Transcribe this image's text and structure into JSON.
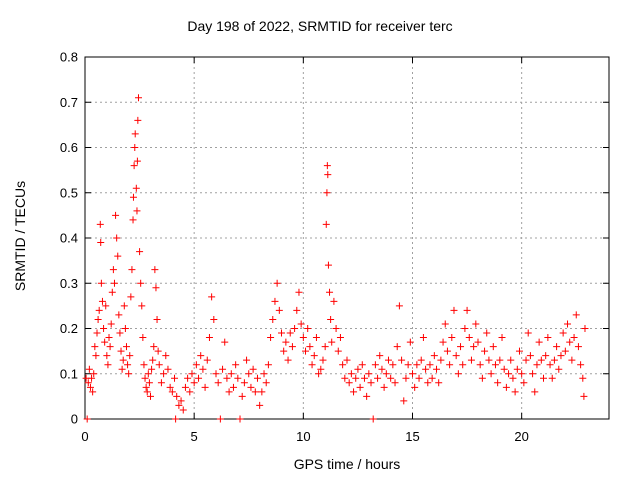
{
  "chart_data": {
    "type": "scatter",
    "title": "Day 198 of 2022, SRMTID for receiver terc",
    "xlabel": "GPS time / hours",
    "ylabel": "SRMTID / TECUs",
    "xlim": [
      0,
      24
    ],
    "ylim": [
      0,
      0.8
    ],
    "xticks": [
      0,
      5,
      10,
      15,
      20
    ],
    "xtick_labels": [
      "0",
      "5",
      "10",
      "15",
      "20"
    ],
    "yticks": [
      0,
      0.1,
      0.2,
      0.3,
      0.4,
      0.5,
      0.6,
      0.7,
      0.8
    ],
    "ytick_labels": [
      "0",
      "0.1",
      "0.2",
      "0.3",
      "0.4",
      "0.5",
      "0.6",
      "0.7",
      "0.8"
    ],
    "grid": true,
    "marker": "plus",
    "series_color": "#ff0000",
    "series": [
      {
        "name": "SRMTID",
        "points": [
          [
            0.05,
            0.09
          ],
          [
            0.1,
            0.0
          ],
          [
            0.15,
            0.08
          ],
          [
            0.2,
            0.11
          ],
          [
            0.25,
            0.07
          ],
          [
            0.3,
            0.09
          ],
          [
            0.35,
            0.06
          ],
          [
            0.4,
            0.1
          ],
          [
            0.45,
            0.16
          ],
          [
            0.5,
            0.14
          ],
          [
            0.55,
            0.19
          ],
          [
            0.6,
            0.22
          ],
          [
            0.65,
            0.24
          ],
          [
            0.7,
            0.43
          ],
          [
            0.72,
            0.39
          ],
          [
            0.75,
            0.3
          ],
          [
            0.8,
            0.26
          ],
          [
            0.85,
            0.2
          ],
          [
            0.9,
            0.17
          ],
          [
            0.95,
            0.25
          ],
          [
            1.0,
            0.14
          ],
          [
            1.05,
            0.12
          ],
          [
            1.1,
            0.18
          ],
          [
            1.15,
            0.16
          ],
          [
            1.2,
            0.21
          ],
          [
            1.25,
            0.28
          ],
          [
            1.3,
            0.33
          ],
          [
            1.35,
            0.3
          ],
          [
            1.4,
            0.45
          ],
          [
            1.45,
            0.4
          ],
          [
            1.5,
            0.36
          ],
          [
            1.55,
            0.23
          ],
          [
            1.6,
            0.19
          ],
          [
            1.65,
            0.15
          ],
          [
            1.7,
            0.11
          ],
          [
            1.75,
            0.13
          ],
          [
            1.8,
            0.25
          ],
          [
            1.85,
            0.2
          ],
          [
            1.9,
            0.16
          ],
          [
            1.95,
            0.12
          ],
          [
            2.0,
            0.1
          ],
          [
            2.05,
            0.14
          ],
          [
            2.1,
            0.27
          ],
          [
            2.15,
            0.33
          ],
          [
            2.2,
            0.44
          ],
          [
            2.22,
            0.49
          ],
          [
            2.25,
            0.56
          ],
          [
            2.28,
            0.6
          ],
          [
            2.3,
            0.63
          ],
          [
            2.35,
            0.51
          ],
          [
            2.38,
            0.46
          ],
          [
            2.4,
            0.57
          ],
          [
            2.42,
            0.66
          ],
          [
            2.45,
            0.71
          ],
          [
            2.5,
            0.37
          ],
          [
            2.55,
            0.3
          ],
          [
            2.6,
            0.25
          ],
          [
            2.65,
            0.18
          ],
          [
            2.7,
            0.12
          ],
          [
            2.75,
            0.09
          ],
          [
            2.8,
            0.07
          ],
          [
            2.85,
            0.06
          ],
          [
            2.9,
            0.1
          ],
          [
            2.95,
            0.08
          ],
          [
            3.0,
            0.05
          ],
          [
            3.05,
            0.11
          ],
          [
            3.1,
            0.13
          ],
          [
            3.15,
            0.16
          ],
          [
            3.2,
            0.33
          ],
          [
            3.25,
            0.29
          ],
          [
            3.3,
            0.22
          ],
          [
            3.35,
            0.15
          ],
          [
            3.4,
            0.12
          ],
          [
            3.5,
            0.08
          ],
          [
            3.6,
            0.1
          ],
          [
            3.7,
            0.14
          ],
          [
            3.8,
            0.11
          ],
          [
            3.9,
            0.07
          ],
          [
            4.0,
            0.06
          ],
          [
            4.1,
            0.09
          ],
          [
            4.15,
            0.0
          ],
          [
            4.2,
            0.05
          ],
          [
            4.3,
            0.03
          ],
          [
            4.4,
            0.04
          ],
          [
            4.5,
            0.02
          ],
          [
            4.6,
            0.07
          ],
          [
            4.7,
            0.09
          ],
          [
            4.8,
            0.06
          ],
          [
            4.9,
            0.1
          ],
          [
            5.0,
            0.08
          ],
          [
            5.1,
            0.12
          ],
          [
            5.2,
            0.09
          ],
          [
            5.3,
            0.14
          ],
          [
            5.4,
            0.11
          ],
          [
            5.5,
            0.07
          ],
          [
            5.6,
            0.13
          ],
          [
            5.7,
            0.18
          ],
          [
            5.8,
            0.27
          ],
          [
            5.9,
            0.22
          ],
          [
            6.0,
            0.1
          ],
          [
            6.1,
            0.08
          ],
          [
            6.2,
            0.0
          ],
          [
            6.3,
            0.11
          ],
          [
            6.4,
            0.17
          ],
          [
            6.5,
            0.09
          ],
          [
            6.6,
            0.06
          ],
          [
            6.7,
            0.1
          ],
          [
            6.8,
            0.07
          ],
          [
            6.9,
            0.12
          ],
          [
            7.0,
            0.09
          ],
          [
            7.1,
            0.0
          ],
          [
            7.2,
            0.05
          ],
          [
            7.3,
            0.08
          ],
          [
            7.4,
            0.13
          ],
          [
            7.5,
            0.1
          ],
          [
            7.6,
            0.07
          ],
          [
            7.7,
            0.11
          ],
          [
            7.8,
            0.06
          ],
          [
            7.9,
            0.09
          ],
          [
            8.0,
            0.03
          ],
          [
            8.1,
            0.06
          ],
          [
            8.2,
            0.1
          ],
          [
            8.3,
            0.08
          ],
          [
            8.4,
            0.12
          ],
          [
            8.5,
            0.18
          ],
          [
            8.6,
            0.22
          ],
          [
            8.7,
            0.26
          ],
          [
            8.8,
            0.3
          ],
          [
            8.9,
            0.24
          ],
          [
            9.0,
            0.19
          ],
          [
            9.1,
            0.15
          ],
          [
            9.2,
            0.17
          ],
          [
            9.3,
            0.13
          ],
          [
            9.4,
            0.19
          ],
          [
            9.5,
            0.16
          ],
          [
            9.6,
            0.2
          ],
          [
            9.7,
            0.24
          ],
          [
            9.8,
            0.28
          ],
          [
            9.9,
            0.21
          ],
          [
            10.0,
            0.18
          ],
          [
            10.1,
            0.15
          ],
          [
            10.2,
            0.2
          ],
          [
            10.3,
            0.16
          ],
          [
            10.4,
            0.12
          ],
          [
            10.5,
            0.14
          ],
          [
            10.6,
            0.18
          ],
          [
            10.7,
            0.1
          ],
          [
            10.8,
            0.11
          ],
          [
            10.9,
            0.13
          ],
          [
            11.0,
            0.16
          ],
          [
            11.05,
            0.43
          ],
          [
            11.08,
            0.5
          ],
          [
            11.1,
            0.56
          ],
          [
            11.12,
            0.54
          ],
          [
            11.15,
            0.34
          ],
          [
            11.2,
            0.28
          ],
          [
            11.25,
            0.22
          ],
          [
            11.3,
            0.17
          ],
          [
            11.4,
            0.26
          ],
          [
            11.5,
            0.2
          ],
          [
            11.6,
            0.15
          ],
          [
            11.7,
            0.18
          ],
          [
            11.8,
            0.12
          ],
          [
            11.9,
            0.09
          ],
          [
            12.0,
            0.13
          ],
          [
            12.1,
            0.08
          ],
          [
            12.2,
            0.1
          ],
          [
            12.3,
            0.06
          ],
          [
            12.4,
            0.09
          ],
          [
            12.5,
            0.11
          ],
          [
            12.6,
            0.07
          ],
          [
            12.7,
            0.12
          ],
          [
            12.8,
            0.09
          ],
          [
            12.9,
            0.05
          ],
          [
            13.0,
            0.1
          ],
          [
            13.1,
            0.08
          ],
          [
            13.2,
            0.0
          ],
          [
            13.3,
            0.12
          ],
          [
            13.4,
            0.09
          ],
          [
            13.5,
            0.14
          ],
          [
            13.6,
            0.11
          ],
          [
            13.7,
            0.07
          ],
          [
            13.8,
            0.1
          ],
          [
            13.9,
            0.13
          ],
          [
            14.0,
            0.09
          ],
          [
            14.1,
            0.12
          ],
          [
            14.2,
            0.08
          ],
          [
            14.3,
            0.16
          ],
          [
            14.4,
            0.25
          ],
          [
            14.5,
            0.13
          ],
          [
            14.6,
            0.04
          ],
          [
            14.7,
            0.09
          ],
          [
            14.8,
            0.12
          ],
          [
            14.9,
            0.17
          ],
          [
            15.0,
            0.1
          ],
          [
            15.1,
            0.07
          ],
          [
            15.2,
            0.12
          ],
          [
            15.3,
            0.09
          ],
          [
            15.4,
            0.13
          ],
          [
            15.5,
            0.18
          ],
          [
            15.6,
            0.11
          ],
          [
            15.7,
            0.08
          ],
          [
            15.8,
            0.12
          ],
          [
            15.9,
            0.09
          ],
          [
            16.0,
            0.14
          ],
          [
            16.1,
            0.11
          ],
          [
            16.2,
            0.08
          ],
          [
            16.3,
            0.13
          ],
          [
            16.4,
            0.17
          ],
          [
            16.5,
            0.21
          ],
          [
            16.6,
            0.15
          ],
          [
            16.7,
            0.12
          ],
          [
            16.8,
            0.18
          ],
          [
            16.9,
            0.24
          ],
          [
            17.0,
            0.14
          ],
          [
            17.1,
            0.1
          ],
          [
            17.2,
            0.16
          ],
          [
            17.3,
            0.12
          ],
          [
            17.4,
            0.2
          ],
          [
            17.5,
            0.24
          ],
          [
            17.6,
            0.18
          ],
          [
            17.7,
            0.13
          ],
          [
            17.8,
            0.16
          ],
          [
            17.9,
            0.21
          ],
          [
            18.0,
            0.17
          ],
          [
            18.1,
            0.12
          ],
          [
            18.2,
            0.09
          ],
          [
            18.3,
            0.15
          ],
          [
            18.4,
            0.19
          ],
          [
            18.5,
            0.13
          ],
          [
            18.6,
            0.1
          ],
          [
            18.7,
            0.16
          ],
          [
            18.8,
            0.12
          ],
          [
            18.9,
            0.08
          ],
          [
            19.0,
            0.13
          ],
          [
            19.1,
            0.18
          ],
          [
            19.2,
            0.11
          ],
          [
            19.3,
            0.07
          ],
          [
            19.4,
            0.1
          ],
          [
            19.5,
            0.13
          ],
          [
            19.6,
            0.09
          ],
          [
            19.7,
            0.06
          ],
          [
            19.8,
            0.11
          ],
          [
            19.9,
            0.15
          ],
          [
            20.0,
            0.1
          ],
          [
            20.1,
            0.08
          ],
          [
            20.2,
            0.13
          ],
          [
            20.3,
            0.19
          ],
          [
            20.4,
            0.14
          ],
          [
            20.5,
            0.1
          ],
          [
            20.6,
            0.06
          ],
          [
            20.7,
            0.12
          ],
          [
            20.8,
            0.17
          ],
          [
            20.9,
            0.13
          ],
          [
            21.0,
            0.09
          ],
          [
            21.1,
            0.14
          ],
          [
            21.2,
            0.18
          ],
          [
            21.3,
            0.12
          ],
          [
            21.4,
            0.09
          ],
          [
            21.5,
            0.13
          ],
          [
            21.6,
            0.16
          ],
          [
            21.7,
            0.11
          ],
          [
            21.8,
            0.14
          ],
          [
            21.9,
            0.19
          ],
          [
            22.0,
            0.15
          ],
          [
            22.1,
            0.21
          ],
          [
            22.2,
            0.17
          ],
          [
            22.3,
            0.13
          ],
          [
            22.4,
            0.18
          ],
          [
            22.5,
            0.23
          ],
          [
            22.6,
            0.16
          ],
          [
            22.7,
            0.12
          ],
          [
            22.8,
            0.09
          ],
          [
            22.85,
            0.05
          ],
          [
            22.9,
            0.2
          ]
        ]
      }
    ]
  }
}
